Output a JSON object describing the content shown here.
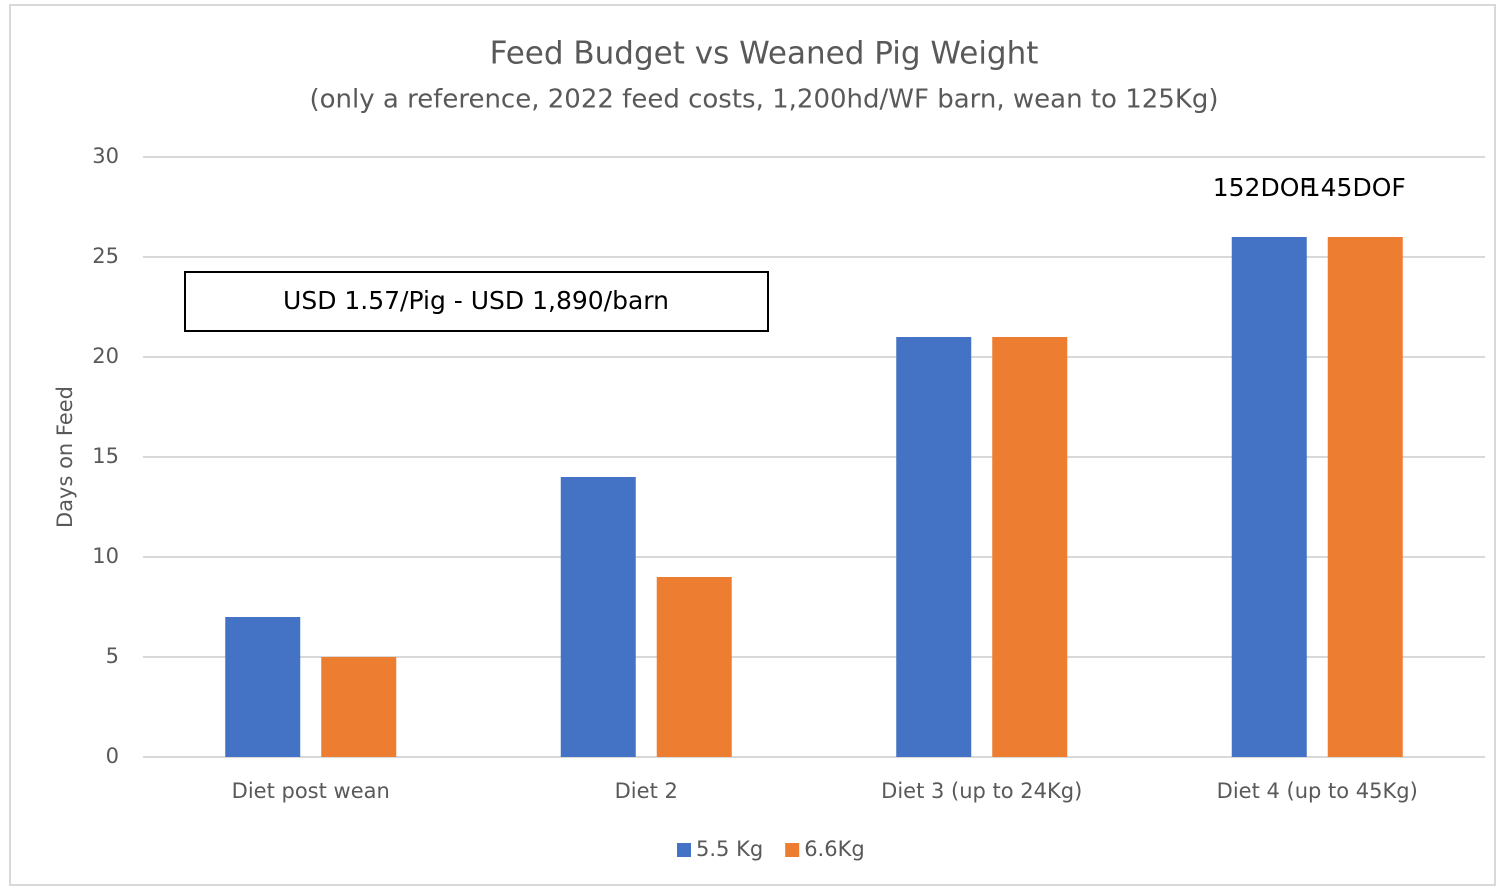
{
  "chart_data": {
    "type": "bar",
    "title": "Feed Budget vs Weaned Pig Weight",
    "subtitle": "(only a reference, 2022 feed costs, 1,200hd/WF barn, wean to 125Kg)",
    "y_label": "Days on Feed",
    "categories": [
      "Diet post wean",
      "Diet 2",
      "Diet 3 (up to 24Kg)",
      "Diet 4 (up to 45Kg)"
    ],
    "series": [
      {
        "name": "5.5 Kg",
        "color": "#4472c4",
        "values": [
          7,
          14,
          21,
          26
        ]
      },
      {
        "name": "6.6Kg",
        "color": "#ed7d31",
        "values": [
          5,
          9,
          21,
          26
        ]
      }
    ],
    "annotations": [
      "USD 1.57/Pig - USD 1,890/barn",
      "152DOF",
      "145DOF"
    ],
    "ylim": [
      0,
      30
    ],
    "yticks": [
      0,
      5,
      10,
      15,
      20,
      25,
      30
    ],
    "grid": true,
    "legend": "bottom"
  }
}
